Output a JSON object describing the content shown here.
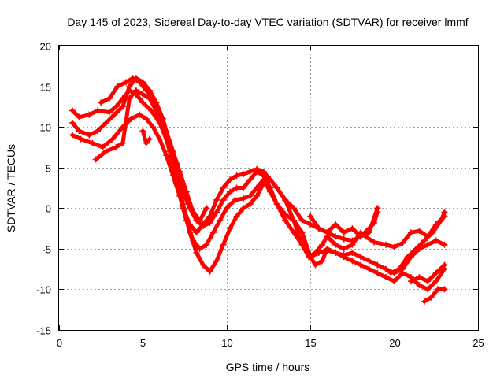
{
  "chart_data": {
    "type": "scatter",
    "title": "Day 145 of 2023, Sidereal Day-to-day VTEC variation (SDTVAR) for receiver lmmf",
    "xlabel": "GPS time / hours",
    "ylabel": "SDTVAR / TECUs",
    "xlim": [
      0,
      25
    ],
    "ylim": [
      -15,
      20
    ],
    "xticks": [
      0,
      5,
      10,
      15,
      20,
      25
    ],
    "yticks": [
      -15,
      -10,
      -5,
      0,
      5,
      10,
      15,
      20
    ],
    "grid": true,
    "color": "#ff0000",
    "marker": "plus",
    "series": [
      {
        "name": "trace-1",
        "points": [
          [
            0.8,
            12.0
          ],
          [
            1.2,
            11.2
          ],
          [
            1.8,
            11.5
          ],
          [
            2.3,
            12.0
          ],
          [
            3.0,
            11.8
          ],
          [
            3.4,
            12.5
          ],
          [
            3.8,
            13.5
          ],
          [
            4.2,
            14.5
          ],
          [
            4.6,
            14.0
          ],
          [
            5.0,
            13.0
          ],
          [
            5.5,
            12.0
          ],
          [
            6.0,
            10.5
          ],
          [
            6.4,
            8.5
          ],
          [
            6.8,
            6.0
          ],
          [
            7.0,
            3.0
          ],
          [
            7.4,
            0.0
          ],
          [
            7.8,
            -2.0
          ],
          [
            8.2,
            -3.0
          ],
          [
            8.6,
            -2.0
          ],
          [
            9.0,
            -1.0
          ],
          [
            9.4,
            1.0
          ],
          [
            9.8,
            2.5
          ],
          [
            10.2,
            3.5
          ],
          [
            10.6,
            4.0
          ],
          [
            11.0,
            4.2
          ],
          [
            11.4,
            4.5
          ],
          [
            11.8,
            4.8
          ],
          [
            12.2,
            4.5
          ],
          [
            12.6,
            3.5
          ],
          [
            13.0,
            2.5
          ],
          [
            13.5,
            1.0
          ],
          [
            14.0,
            0.0
          ],
          [
            14.5,
            -1.5
          ],
          [
            15.0,
            -2.0
          ],
          [
            15.5,
            -2.5
          ],
          [
            16.0,
            -3.0
          ],
          [
            16.5,
            -3.5
          ],
          [
            17.0,
            -3.8
          ],
          [
            17.5,
            -4.0
          ],
          [
            18.0,
            -3.5
          ],
          [
            18.5,
            -2.5
          ],
          [
            18.8,
            -1.8
          ],
          [
            19.0,
            -0.5
          ]
        ]
      },
      {
        "name": "trace-2",
        "points": [
          [
            0.8,
            10.5
          ],
          [
            1.2,
            9.5
          ],
          [
            1.8,
            9.0
          ],
          [
            2.3,
            9.5
          ],
          [
            2.8,
            10.5
          ],
          [
            3.3,
            11.5
          ],
          [
            3.8,
            12.5
          ],
          [
            4.2,
            15.0
          ],
          [
            4.6,
            16.0
          ],
          [
            5.0,
            15.5
          ],
          [
            5.4,
            14.5
          ],
          [
            5.8,
            13.0
          ],
          [
            6.2,
            11.0
          ],
          [
            6.6,
            8.0
          ],
          [
            7.0,
            5.5
          ],
          [
            7.4,
            2.0
          ],
          [
            7.8,
            0.0
          ],
          [
            8.2,
            -1.5
          ],
          [
            8.6,
            -2.2
          ],
          [
            9.0,
            -1.8
          ],
          [
            9.4,
            -0.5
          ],
          [
            9.8,
            1.0
          ],
          [
            10.2,
            2.0
          ],
          [
            10.6,
            2.5
          ],
          [
            11.0,
            2.5
          ],
          [
            11.4,
            3.5
          ],
          [
            11.8,
            4.5
          ],
          [
            12.2,
            4.0
          ],
          [
            12.6,
            2.5
          ],
          [
            13.0,
            0.5
          ],
          [
            13.5,
            -1.5
          ],
          [
            14.0,
            -3.0
          ],
          [
            14.5,
            -4.5
          ],
          [
            14.9,
            -6.0
          ],
          [
            15.3,
            -5.5
          ],
          [
            15.7,
            -4.5
          ],
          [
            16.0,
            -3.5
          ],
          [
            16.5,
            -4.5
          ],
          [
            17.0,
            -5.0
          ],
          [
            17.5,
            -4.5
          ],
          [
            18.0,
            -3.0
          ],
          [
            18.3,
            -3.5
          ],
          [
            18.8,
            -4.2
          ],
          [
            19.5,
            -4.5
          ],
          [
            20.0,
            -4.8
          ],
          [
            20.5,
            -4.3
          ],
          [
            21.0,
            -3.0
          ],
          [
            21.5,
            -2.8
          ],
          [
            22.0,
            -3.5
          ],
          [
            22.5,
            -2.0
          ],
          [
            23.0,
            -1.0
          ]
        ]
      },
      {
        "name": "trace-3",
        "points": [
          [
            0.8,
            9.0
          ],
          [
            1.3,
            8.5
          ],
          [
            2.0,
            8.0
          ],
          [
            2.6,
            7.5
          ],
          [
            3.2,
            8.5
          ],
          [
            3.8,
            10.0
          ],
          [
            4.3,
            11.0
          ],
          [
            4.8,
            11.5
          ],
          [
            5.2,
            11.0
          ],
          [
            5.6,
            10.0
          ],
          [
            6.0,
            8.5
          ],
          [
            6.4,
            6.5
          ],
          [
            6.8,
            4.0
          ],
          [
            7.2,
            1.5
          ],
          [
            7.6,
            -1.5
          ],
          [
            8.0,
            -4.0
          ],
          [
            8.4,
            -5.0
          ],
          [
            8.8,
            -4.5
          ],
          [
            9.2,
            -3.0
          ],
          [
            9.6,
            -1.5
          ],
          [
            10.0,
            0.0
          ],
          [
            10.5,
            1.0
          ],
          [
            11.0,
            1.2
          ],
          [
            11.4,
            1.5
          ],
          [
            11.8,
            2.5
          ],
          [
            12.2,
            3.5
          ],
          [
            12.6,
            2.0
          ],
          [
            13.0,
            0.5
          ],
          [
            13.5,
            -0.8
          ],
          [
            14.0,
            -1.5
          ],
          [
            14.5,
            -3.0
          ],
          [
            15.0,
            -6.0
          ],
          [
            15.3,
            -7.0
          ],
          [
            15.7,
            -6.5
          ],
          [
            16.0,
            -5.0
          ],
          [
            16.5,
            -5.5
          ],
          [
            17.0,
            -5.8
          ],
          [
            17.5,
            -5.5
          ],
          [
            18.0,
            -6.0
          ],
          [
            18.5,
            -6.5
          ],
          [
            19.0,
            -7.0
          ],
          [
            19.5,
            -7.5
          ],
          [
            20.0,
            -8.0
          ],
          [
            20.5,
            -7.5
          ],
          [
            21.0,
            -6.0
          ],
          [
            21.5,
            -5.0
          ],
          [
            22.0,
            -4.5
          ],
          [
            22.5,
            -4.0
          ],
          [
            23.0,
            -4.5
          ]
        ]
      },
      {
        "name": "trace-4",
        "points": [
          [
            2.2,
            6.0
          ],
          [
            2.8,
            7.0
          ],
          [
            3.4,
            7.5
          ],
          [
            3.8,
            8.0
          ],
          [
            4.2,
            13.5
          ],
          [
            4.6,
            14.5
          ],
          [
            5.0,
            14.0
          ],
          [
            5.4,
            13.5
          ],
          [
            5.8,
            12.0
          ],
          [
            6.2,
            10.0
          ],
          [
            6.6,
            7.0
          ],
          [
            7.0,
            4.0
          ],
          [
            7.4,
            0.5
          ],
          [
            7.8,
            -3.0
          ],
          [
            8.2,
            -5.5
          ],
          [
            8.6,
            -7.0
          ],
          [
            9.0,
            -7.8
          ],
          [
            9.4,
            -6.5
          ],
          [
            9.8,
            -4.5
          ],
          [
            10.2,
            -2.5
          ],
          [
            10.6,
            -1.0
          ],
          [
            11.0,
            0.0
          ],
          [
            11.4,
            0.5
          ],
          [
            11.8,
            1.5
          ],
          [
            12.2,
            3.0
          ],
          [
            12.6,
            3.5
          ],
          [
            13.0,
            2.5
          ],
          [
            13.5,
            1.0
          ],
          [
            14.0,
            -1.5
          ],
          [
            14.5,
            -4.5
          ],
          [
            15.0,
            -6.0
          ],
          [
            15.5,
            -5.5
          ],
          [
            16.0,
            -5.2
          ],
          [
            16.5,
            -5.5
          ],
          [
            17.0,
            -6.0
          ],
          [
            17.5,
            -6.5
          ],
          [
            18.0,
            -7.0
          ],
          [
            18.5,
            -7.5
          ],
          [
            19.0,
            -8.0
          ],
          [
            19.5,
            -8.5
          ],
          [
            20.0,
            -9.0
          ],
          [
            20.5,
            -8.0
          ],
          [
            21.0,
            -8.5
          ],
          [
            21.5,
            -9.5
          ],
          [
            22.0,
            -10.0
          ],
          [
            22.5,
            -9.0
          ],
          [
            23.0,
            -7.5
          ]
        ]
      },
      {
        "name": "trace-5",
        "points": [
          [
            2.5,
            13.0
          ],
          [
            3.0,
            13.5
          ],
          [
            3.5,
            15.0
          ],
          [
            4.0,
            15.5
          ],
          [
            4.4,
            16.0
          ],
          [
            4.8,
            15.5
          ],
          [
            5.2,
            14.5
          ],
          [
            5.6,
            13.5
          ],
          [
            6.0,
            11.5
          ],
          [
            6.4,
            9.5
          ],
          [
            6.8,
            7.0
          ],
          [
            7.2,
            4.5
          ],
          [
            7.6,
            2.0
          ],
          [
            8.0,
            -0.5
          ],
          [
            8.4,
            -1.5
          ],
          [
            8.8,
            0.0
          ]
        ]
      },
      {
        "name": "trace-6",
        "points": [
          [
            15.0,
            -1.0
          ],
          [
            15.5,
            -2.5
          ],
          [
            16.0,
            -3.0
          ],
          [
            16.5,
            -2.0
          ],
          [
            17.0,
            -3.0
          ],
          [
            17.5,
            -2.5
          ],
          [
            18.0,
            -3.5
          ],
          [
            18.5,
            -3.0
          ],
          [
            19.0,
            0.0
          ]
        ]
      },
      {
        "name": "trace-7",
        "points": [
          [
            19.8,
            -8.0
          ],
          [
            20.3,
            -7.5
          ],
          [
            20.8,
            -6.0
          ],
          [
            21.3,
            -5.0
          ],
          [
            21.8,
            -4.0
          ],
          [
            22.3,
            -3.0
          ],
          [
            22.8,
            -1.5
          ],
          [
            23.0,
            -0.5
          ]
        ]
      },
      {
        "name": "trace-8",
        "points": [
          [
            21.0,
            -9.0
          ],
          [
            21.5,
            -8.5
          ],
          [
            22.0,
            -9.0
          ],
          [
            22.5,
            -8.0
          ],
          [
            23.0,
            -7.0
          ]
        ]
      },
      {
        "name": "trace-9",
        "points": [
          [
            21.8,
            -11.5
          ],
          [
            22.2,
            -11.0
          ],
          [
            22.6,
            -10.0
          ],
          [
            23.0,
            -10.0
          ]
        ]
      },
      {
        "name": "trace-10",
        "points": [
          [
            5.0,
            9.5
          ],
          [
            5.2,
            8.0
          ],
          [
            5.4,
            8.5
          ]
        ]
      }
    ]
  }
}
